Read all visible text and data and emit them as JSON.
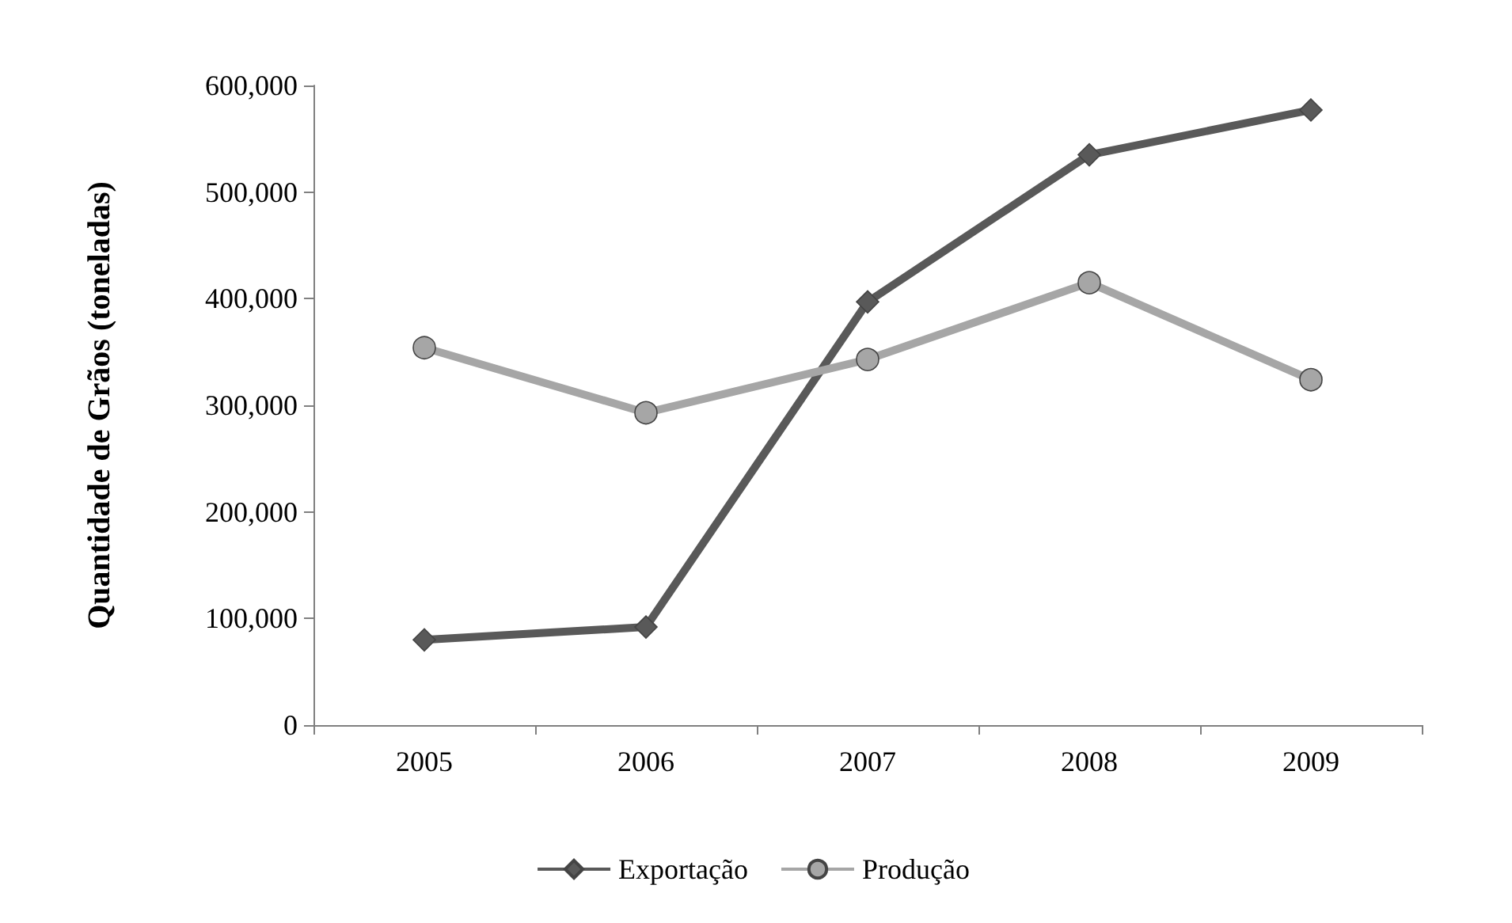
{
  "chart_data": {
    "type": "line",
    "ylabel": "Quantidade de Grãos (toneladas)",
    "categories": [
      "2005",
      "2006",
      "2007",
      "2008",
      "2009"
    ],
    "series": [
      {
        "name": "Exportação",
        "color": "#595959",
        "marker": "diamond",
        "values": [
          80000,
          92000,
          397000,
          535000,
          577000
        ]
      },
      {
        "name": "Produção",
        "color": "#a6a6a6",
        "marker": "circle",
        "values": [
          354000,
          293000,
          343000,
          415000,
          324000
        ]
      }
    ],
    "ylim": [
      0,
      600000
    ],
    "yticks": [
      0,
      {
        "value": 100000,
        "label": "100,000"
      },
      {
        "value": 200000,
        "label": "200,000"
      },
      {
        "value": 300000,
        "label": "300,000"
      },
      {
        "value": 400000,
        "label": "400,000"
      },
      {
        "value": 500000,
        "label": "500,000"
      },
      {
        "value": 600000,
        "label": "600,000"
      }
    ],
    "grid": false,
    "legend": "bottom"
  }
}
